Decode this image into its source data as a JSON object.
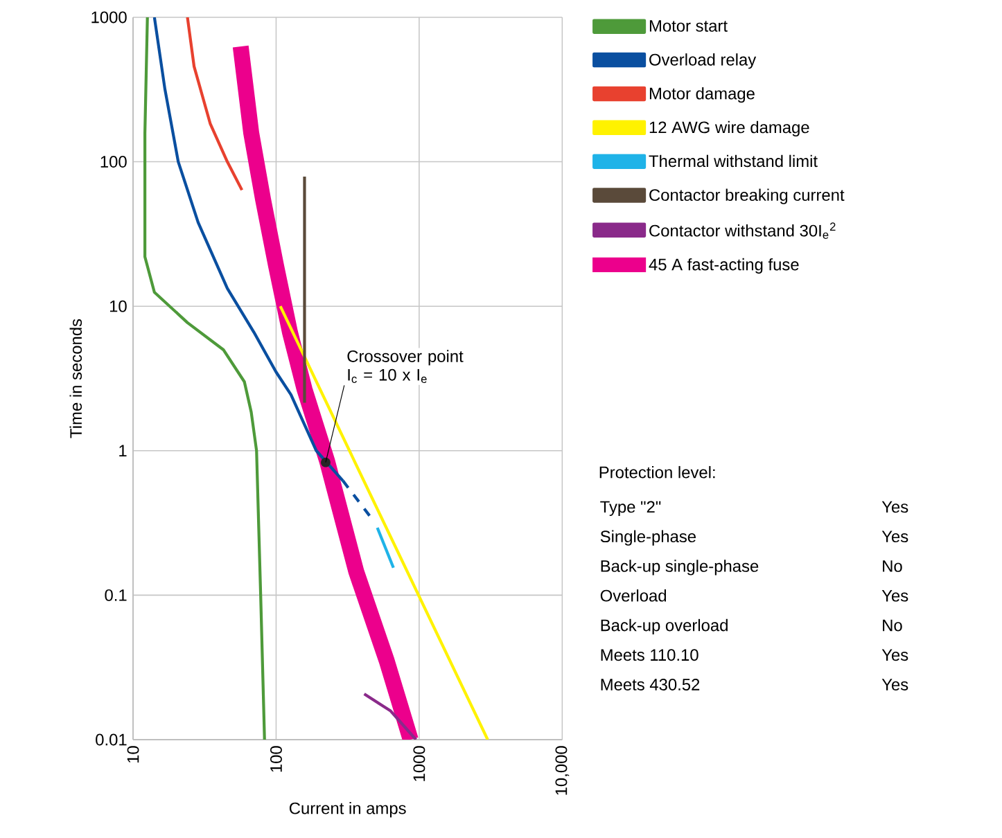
{
  "chart_data": {
    "type": "line",
    "xlabel": "Current in amps",
    "ylabel": "Time in seconds",
    "log": "xy",
    "grid": true,
    "legend": "top right",
    "xlim": [
      10,
      10000
    ],
    "ylim": [
      0.01,
      1000
    ],
    "xticks": [
      10,
      100,
      1000,
      {
        "value": 10000,
        "label": "10,000"
      }
    ],
    "yticks": [
      0.01,
      0.1,
      1,
      10,
      100,
      1000
    ],
    "series": [
      {
        "name": "Motor start",
        "color": "#4e9a3a",
        "x": [
          12.6,
          12.1,
          12.1,
          14.1,
          24,
          42.8,
          60,
          67,
          73,
          78,
          83
        ],
        "values": [
          1000,
          158,
          22,
          12.5,
          7.7,
          5.0,
          3.0,
          1.85,
          1,
          0.1,
          0.01
        ]
      },
      {
        "name": "Overload relay",
        "color": "#0a4fa0",
        "x": [
          14.1,
          16.7,
          20.7,
          28.5,
          45.6,
          70,
          100,
          127,
          191,
          293
        ],
        "values": [
          1000,
          318,
          100,
          38,
          13.3,
          6.6,
          3.5,
          2.44,
          1,
          0.62
        ]
      },
      {
        "name": "Motor damage",
        "color": "#e8412f",
        "x": [
          24,
          26.7,
          34.6,
          45.6,
          57.7
        ],
        "values": [
          1000,
          457,
          184,
          100,
          63.7
        ]
      },
      {
        "name": "12 AWG wire damage",
        "color": "#fff200",
        "x": [
          107,
          3013
        ],
        "values": [
          10,
          0.01
        ]
      },
      {
        "name": "Thermal withstand limit",
        "color": "#1fb3e8",
        "x": [
          510,
          661
        ],
        "values": [
          0.293,
          0.155
        ]
      },
      {
        "name": "Contactor breaking current",
        "color": "#5a4a3a",
        "x": [
          158,
          158
        ],
        "values": [
          79,
          2.15
        ]
      },
      {
        "name": "Contactor withstand 30I$_{e}$$^{2}$",
        "color": "#8a2a8a",
        "x": [
          413,
          632,
          950
        ],
        "values": [
          0.0207,
          0.0158,
          0.01
        ]
      },
      {
        "name": "45 A fast-acting fuse",
        "color": "#ec008c",
        "x": [
          56.5,
          67,
          81,
          100,
          125,
          158,
          227,
          363,
          593,
          871
        ],
        "values": [
          628,
          158,
          55,
          19,
          6.6,
          2.66,
          0.85,
          0.146,
          0.0352,
          0.01
        ]
      },
      {
        "color": "#0a4fa0",
        "line_style": "dashed",
        "x": [
          293,
          450
        ],
        "values": [
          0.62,
          0.355
        ]
      }
    ],
    "annotations": [
      {
        "text": "Crossover point I$_{c}$ = 10 x I$_{e}$",
        "x": 222,
        "y": 0.83
      },
      "Protection level:",
      "Type \"2\"",
      "Yes",
      "Single-phase",
      "Yes",
      "Back-up single-phase",
      "No",
      "Overload",
      "Yes",
      "Back-up overload",
      "No",
      "Meets 110.10",
      "Yes",
      "Meets 430.52",
      "Yes"
    ]
  }
}
